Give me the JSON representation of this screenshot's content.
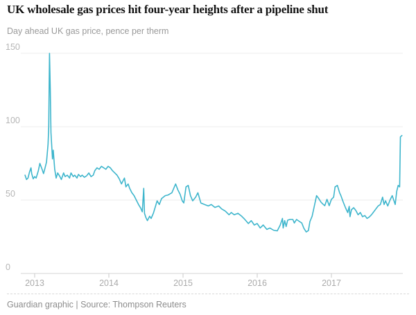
{
  "page": {
    "title": "UK wholesale gas prices hit four-year heights after a pipeline shut",
    "subtitle": "Day ahead UK gas price, pence per therm",
    "footer": "Guardian graphic | Source: Thompson Reuters"
  },
  "chart_data": {
    "type": "line",
    "title": "UK wholesale gas prices hit four-year heights after a pipeline shut",
    "subtitle": "Day ahead UK gas price, pence per therm",
    "ylabel": "pence per therm",
    "xlabel": "",
    "series_name": "Day ahead UK gas price",
    "line_color": "#3db5cc",
    "grid": true,
    "legend": "none",
    "ylim": [
      0,
      150
    ],
    "xlim": [
      2012.85,
      2017.97
    ],
    "y_ticks": [
      0,
      50,
      100,
      150
    ],
    "x_ticks": [
      2013,
      2014,
      2015,
      2016,
      2017
    ],
    "points": [
      [
        2012.87,
        67
      ],
      [
        2012.89,
        64
      ],
      [
        2012.91,
        65
      ],
      [
        2012.93,
        69
      ],
      [
        2012.95,
        72
      ],
      [
        2012.96,
        68
      ],
      [
        2012.98,
        64.5
      ],
      [
        2013.0,
        66
      ],
      [
        2013.02,
        65
      ],
      [
        2013.05,
        70
      ],
      [
        2013.07,
        75
      ],
      [
        2013.1,
        71
      ],
      [
        2013.12,
        68
      ],
      [
        2013.14,
        72
      ],
      [
        2013.16,
        76
      ],
      [
        2013.18,
        88
      ],
      [
        2013.19,
        100
      ],
      [
        2013.2,
        150
      ],
      [
        2013.21,
        126
      ],
      [
        2013.22,
        96
      ],
      [
        2013.24,
        78
      ],
      [
        2013.25,
        84
      ],
      [
        2013.27,
        71
      ],
      [
        2013.29,
        65
      ],
      [
        2013.31,
        68.5
      ],
      [
        2013.34,
        66
      ],
      [
        2013.36,
        64
      ],
      [
        2013.39,
        68.5
      ],
      [
        2013.41,
        66
      ],
      [
        2013.44,
        67
      ],
      [
        2013.47,
        65
      ],
      [
        2013.49,
        68.5
      ],
      [
        2013.52,
        66
      ],
      [
        2013.54,
        67
      ],
      [
        2013.57,
        65
      ],
      [
        2013.59,
        67.5
      ],
      [
        2013.62,
        66
      ],
      [
        2013.64,
        67
      ],
      [
        2013.67,
        65.5
      ],
      [
        2013.7,
        66.5
      ],
      [
        2013.73,
        68.5
      ],
      [
        2013.76,
        66
      ],
      [
        2013.79,
        67
      ],
      [
        2013.81,
        70
      ],
      [
        2013.84,
        72
      ],
      [
        2013.87,
        71
      ],
      [
        2013.9,
        73
      ],
      [
        2013.93,
        72
      ],
      [
        2013.96,
        71
      ],
      [
        2013.99,
        73
      ],
      [
        2014.02,
        72
      ],
      [
        2014.05,
        70
      ],
      [
        2014.08,
        68.5
      ],
      [
        2014.11,
        67
      ],
      [
        2014.14,
        64.5
      ],
      [
        2014.17,
        61
      ],
      [
        2014.19,
        63
      ],
      [
        2014.21,
        65
      ],
      [
        2014.23,
        59
      ],
      [
        2014.26,
        61
      ],
      [
        2014.28,
        58
      ],
      [
        2014.31,
        55
      ],
      [
        2014.34,
        53
      ],
      [
        2014.37,
        50
      ],
      [
        2014.4,
        47
      ],
      [
        2014.43,
        44.5
      ],
      [
        2014.45,
        42
      ],
      [
        2014.47,
        58
      ],
      [
        2014.48,
        41
      ],
      [
        2014.5,
        38
      ],
      [
        2014.52,
        36
      ],
      [
        2014.55,
        39
      ],
      [
        2014.57,
        37.5
      ],
      [
        2014.6,
        41
      ],
      [
        2014.63,
        46
      ],
      [
        2014.65,
        49.5
      ],
      [
        2014.68,
        47
      ],
      [
        2014.71,
        51
      ],
      [
        2014.76,
        53
      ],
      [
        2014.8,
        53.5
      ],
      [
        2014.85,
        55
      ],
      [
        2014.9,
        61
      ],
      [
        2014.93,
        57
      ],
      [
        2014.96,
        54
      ],
      [
        2014.99,
        49.5
      ],
      [
        2015.01,
        48
      ],
      [
        2015.04,
        59
      ],
      [
        2015.07,
        60
      ],
      [
        2015.1,
        53
      ],
      [
        2015.13,
        49.5
      ],
      [
        2015.17,
        52
      ],
      [
        2015.2,
        55
      ],
      [
        2015.24,
        48
      ],
      [
        2015.29,
        47
      ],
      [
        2015.34,
        46
      ],
      [
        2015.38,
        47
      ],
      [
        2015.43,
        45
      ],
      [
        2015.48,
        46
      ],
      [
        2015.52,
        44
      ],
      [
        2015.57,
        42.5
      ],
      [
        2015.62,
        40
      ],
      [
        2015.65,
        41.5
      ],
      [
        2015.69,
        40
      ],
      [
        2015.74,
        41
      ],
      [
        2015.79,
        39
      ],
      [
        2015.83,
        37
      ],
      [
        2015.88,
        34
      ],
      [
        2015.92,
        36
      ],
      [
        2015.96,
        33
      ],
      [
        2016.0,
        34
      ],
      [
        2016.04,
        31
      ],
      [
        2016.08,
        33
      ],
      [
        2016.13,
        30
      ],
      [
        2016.17,
        31
      ],
      [
        2016.22,
        29.5
      ],
      [
        2016.27,
        29
      ],
      [
        2016.31,
        33
      ],
      [
        2016.34,
        37.5
      ],
      [
        2016.35,
        31
      ],
      [
        2016.37,
        36
      ],
      [
        2016.39,
        32
      ],
      [
        2016.41,
        36.3
      ],
      [
        2016.44,
        36.8
      ],
      [
        2016.48,
        36.8
      ],
      [
        2016.5,
        34.4
      ],
      [
        2016.53,
        36.8
      ],
      [
        2016.57,
        35.4
      ],
      [
        2016.6,
        34.4
      ],
      [
        2016.63,
        30.7
      ],
      [
        2016.66,
        28.3
      ],
      [
        2016.69,
        29.2
      ],
      [
        2016.71,
        35.4
      ],
      [
        2016.74,
        39
      ],
      [
        2016.77,
        46
      ],
      [
        2016.8,
        53
      ],
      [
        2016.83,
        51
      ],
      [
        2016.86,
        48.6
      ],
      [
        2016.88,
        47.5
      ],
      [
        2016.91,
        46.2
      ],
      [
        2016.94,
        50.5
      ],
      [
        2016.97,
        46.2
      ],
      [
        2017.0,
        50.5
      ],
      [
        2017.03,
        52
      ],
      [
        2017.05,
        59
      ],
      [
        2017.08,
        60
      ],
      [
        2017.11,
        55
      ],
      [
        2017.13,
        52.8
      ],
      [
        2017.16,
        48.6
      ],
      [
        2017.19,
        44.8
      ],
      [
        2017.22,
        41.5
      ],
      [
        2017.24,
        45.7
      ],
      [
        2017.25,
        38.7
      ],
      [
        2017.27,
        43.4
      ],
      [
        2017.3,
        44.8
      ],
      [
        2017.33,
        42.9
      ],
      [
        2017.36,
        40
      ],
      [
        2017.39,
        41.5
      ],
      [
        2017.42,
        38.7
      ],
      [
        2017.45,
        39.5
      ],
      [
        2017.48,
        37.5
      ],
      [
        2017.51,
        38.5
      ],
      [
        2017.54,
        40
      ],
      [
        2017.57,
        42
      ],
      [
        2017.6,
        44
      ],
      [
        2017.63,
        46
      ],
      [
        2017.66,
        47
      ],
      [
        2017.69,
        52
      ],
      [
        2017.71,
        47
      ],
      [
        2017.73,
        49.5
      ],
      [
        2017.76,
        46
      ],
      [
        2017.79,
        50
      ],
      [
        2017.82,
        53
      ],
      [
        2017.84,
        50
      ],
      [
        2017.86,
        47
      ],
      [
        2017.88,
        56
      ],
      [
        2017.9,
        60
      ],
      [
        2017.92,
        59
      ],
      [
        2017.93,
        93
      ],
      [
        2017.95,
        94
      ]
    ]
  }
}
